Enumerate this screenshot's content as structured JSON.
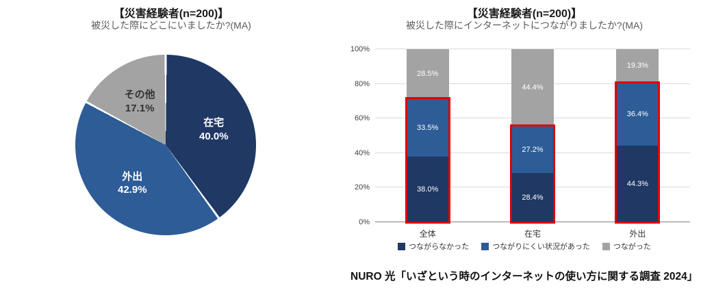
{
  "caption": "NURO 光「いざという時のインターネットの使い方に関する調査 2024」",
  "colors": {
    "navy": "#1f3864",
    "blue": "#2d5c97",
    "gray": "#a3a3a3",
    "highlight_red": "#e00000",
    "grid": "#d9d9d9",
    "axis": "#7f7f7f",
    "title": "#1a1a1a",
    "subtitle": "#595959"
  },
  "chart_data": [
    {
      "type": "pie",
      "title": "【災害経験者(n=200)】",
      "subtitle": "被災した際にどこにいましたか?(MA)",
      "direction": "clockwise",
      "start_angle": "top",
      "slices": [
        {
          "label": "在宅",
          "value": 40.0,
          "value_label": "40.0%",
          "color": "#1f3864",
          "text_color": "#ffffff"
        },
        {
          "label": "外出",
          "value": 42.9,
          "value_label": "42.9%",
          "color": "#2d5c97",
          "text_color": "#ffffff"
        },
        {
          "label": "その他",
          "value": 17.1,
          "value_label": "17.1%",
          "color": "#a3a3a3",
          "text_color": "#333333"
        }
      ]
    },
    {
      "type": "bar",
      "variant": "stacked-percent",
      "title": "【災害経験者(n=200)】",
      "subtitle": "被災した際にインターネットにつながりましたか?(MA)",
      "categories": [
        "全体",
        "在宅",
        "外出"
      ],
      "series": [
        {
          "name": "つながらなかった",
          "color": "#1f3864",
          "values": [
            38.0,
            28.4,
            44.3
          ]
        },
        {
          "name": "つながりにくい状況があった",
          "color": "#2d5c97",
          "values": [
            33.5,
            27.2,
            36.4
          ]
        },
        {
          "name": "つながった",
          "color": "#a3a3a3",
          "values": [
            28.5,
            44.4,
            19.3
          ]
        }
      ],
      "ylim": [
        0,
        100
      ],
      "ytick_step": 20,
      "yticks": [
        "0%",
        "20%",
        "40%",
        "60%",
        "80%",
        "100%"
      ],
      "grid": true,
      "legend_position": "bottom",
      "highlight_outline": {
        "color": "#e00000",
        "covers_series": [
          "つながらなかった",
          "つながりにくい状況があった"
        ]
      }
    }
  ]
}
